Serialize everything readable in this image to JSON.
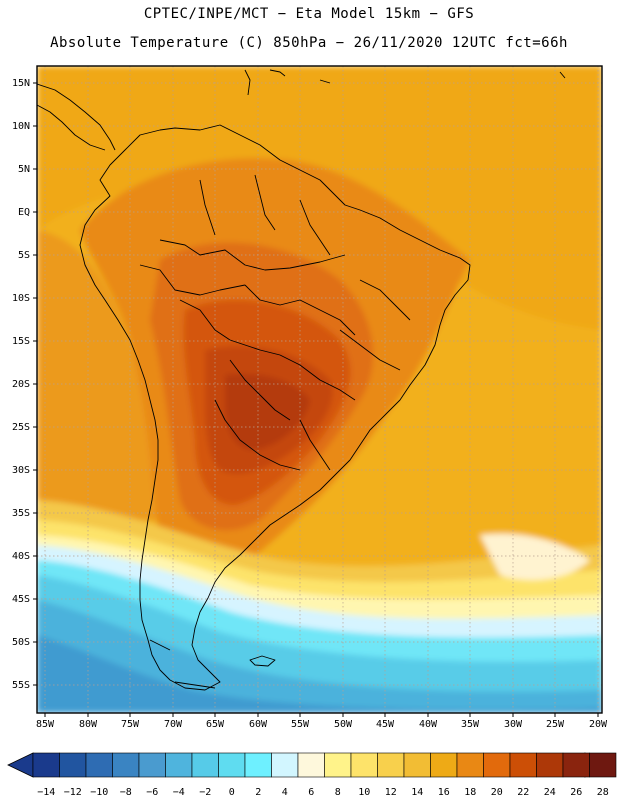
{
  "header": {
    "line1": "CPTEC/INPE/MCT −  Eta Model 15km − GFS",
    "line2": "Absolute Temperature (C) 850hPa − 26/11/2020 12UTC fct=66h"
  },
  "map": {
    "lat_labels": [
      "15N",
      "10N",
      "5N",
      "EQ",
      "5S",
      "10S",
      "15S",
      "20S",
      "25S",
      "30S",
      "35S",
      "40S",
      "45S",
      "50S",
      "55S"
    ],
    "lon_labels": [
      "85W",
      "80W",
      "75W",
      "70W",
      "65W",
      "60W",
      "55W",
      "50W",
      "45W",
      "40W",
      "35W",
      "30W",
      "25W",
      "20W"
    ]
  },
  "legend": {
    "ticks": [
      "-14",
      "-12",
      "-10",
      "-8",
      "-6",
      "-4",
      "-2",
      "0",
      "2",
      "4",
      "6",
      "8",
      "10",
      "12",
      "14",
      "16",
      "18",
      "20",
      "22",
      "24",
      "26",
      "28"
    ],
    "colors": [
      "#1a3a8c",
      "#2155a0",
      "#2e6cb3",
      "#3a84c2",
      "#4a9bcf",
      "#4fb4dd",
      "#56cbe8",
      "#5fdcf0",
      "#6ef0ff",
      "#d2f6ff",
      "#fef8dc",
      "#fff38a",
      "#fde36a",
      "#f8d04c",
      "#f2bd34",
      "#eeaa16",
      "#e98814",
      "#e26a0c",
      "#cc4f06",
      "#ad3808",
      "#8a240e",
      "#6e1810"
    ]
  }
}
